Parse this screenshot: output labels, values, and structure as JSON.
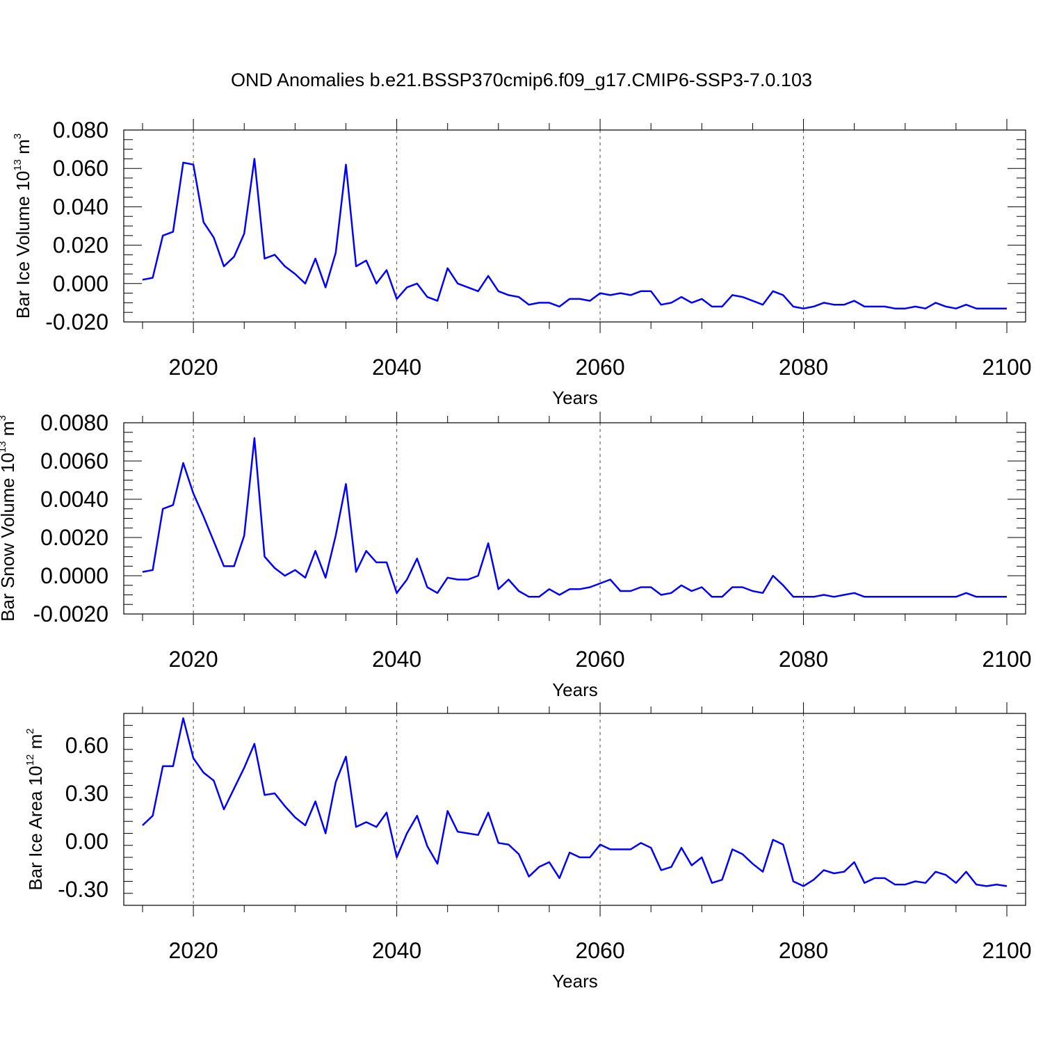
{
  "title": "OND Anomalies b.e21.BSSP370cmip6.f09_g17.CMIP6-SSP3-7.0.103",
  "colors": {
    "line": "#0000ff",
    "axes": "#000000",
    "background": "#ffffff"
  },
  "chart_data": [
    {
      "type": "line",
      "ylabel_main": "Bar Ice Volume 10",
      "ylabel_exp": "13",
      "ylabel_unit": " m",
      "ylabel_unit_exp": "3",
      "xlabel": "Years",
      "xlim": [
        2015,
        2100
      ],
      "ylim": [
        -0.02,
        0.08
      ],
      "xticks": [
        2020,
        2040,
        2060,
        2080,
        2100
      ],
      "xtick_labels": [
        "2020",
        "2040",
        "2060",
        "2080",
        "2100"
      ],
      "yticks": [
        -0.02,
        0.0,
        0.02,
        0.04,
        0.06,
        0.08
      ],
      "ytick_labels": [
        "-0.020",
        "0.000",
        "0.020",
        "0.040",
        "0.060",
        "0.080"
      ],
      "x_start": 2015,
      "values": [
        0.002,
        0.003,
        0.025,
        0.027,
        0.063,
        0.062,
        0.032,
        0.024,
        0.009,
        0.014,
        0.026,
        0.065,
        0.013,
        0.015,
        0.009,
        0.005,
        0.0,
        0.013,
        -0.002,
        0.016,
        0.062,
        0.009,
        0.012,
        0.0,
        0.007,
        -0.008,
        -0.002,
        0.0,
        -0.007,
        -0.009,
        0.008,
        0.0,
        -0.002,
        -0.004,
        0.004,
        -0.004,
        -0.006,
        -0.007,
        -0.011,
        -0.01,
        -0.01,
        -0.012,
        -0.008,
        -0.008,
        -0.009,
        -0.005,
        -0.006,
        -0.005,
        -0.006,
        -0.004,
        -0.004,
        -0.011,
        -0.01,
        -0.007,
        -0.01,
        -0.008,
        -0.012,
        -0.012,
        -0.006,
        -0.007,
        -0.009,
        -0.011,
        -0.004,
        -0.006,
        -0.012,
        -0.013,
        -0.012,
        -0.01,
        -0.011,
        -0.011,
        -0.009,
        -0.012,
        -0.012,
        -0.012,
        -0.013,
        -0.013,
        -0.012,
        -0.013,
        -0.01,
        -0.012,
        -0.013,
        -0.011,
        -0.013,
        -0.013,
        -0.013,
        -0.013
      ]
    },
    {
      "type": "line",
      "ylabel_main": "Bar Snow Volume 10",
      "ylabel_exp": "13",
      "ylabel_unit": " m",
      "ylabel_unit_exp": "3",
      "xlabel": "Years",
      "xlim": [
        2015,
        2100
      ],
      "ylim": [
        -0.002,
        0.008
      ],
      "xticks": [
        2020,
        2040,
        2060,
        2080,
        2100
      ],
      "xtick_labels": [
        "2020",
        "2040",
        "2060",
        "2080",
        "2100"
      ],
      "yticks": [
        -0.002,
        0.0,
        0.002,
        0.004,
        0.006,
        0.008
      ],
      "ytick_labels": [
        "-0.0020",
        "0.0000",
        "0.0020",
        "0.0040",
        "0.0060",
        "0.0080"
      ],
      "x_start": 2015,
      "values": [
        0.0002,
        0.0003,
        0.0035,
        0.0037,
        0.0059,
        0.0043,
        0.0031,
        0.0018,
        0.0005,
        0.0005,
        0.0021,
        0.0072,
        0.001,
        0.0004,
        0.0,
        0.0003,
        -0.0001,
        0.0013,
        -0.0001,
        0.0021,
        0.0048,
        0.0002,
        0.0013,
        0.0007,
        0.0007,
        -0.0009,
        -0.0002,
        0.0009,
        -0.0006,
        -0.0009,
        -0.0001,
        -0.0002,
        -0.0002,
        0.0,
        0.0017,
        -0.0007,
        -0.0002,
        -0.0008,
        -0.0011,
        -0.0011,
        -0.0007,
        -0.001,
        -0.0007,
        -0.0007,
        -0.0006,
        -0.0004,
        -0.0002,
        -0.0008,
        -0.0008,
        -0.0006,
        -0.0006,
        -0.001,
        -0.0009,
        -0.0005,
        -0.0008,
        -0.0006,
        -0.0011,
        -0.0011,
        -0.0006,
        -0.0006,
        -0.0008,
        -0.0009,
        0.0,
        -0.0005,
        -0.0011,
        -0.0011,
        -0.0011,
        -0.001,
        -0.0011,
        -0.001,
        -0.0009,
        -0.0011,
        -0.0011,
        -0.0011,
        -0.0011,
        -0.0011,
        -0.0011,
        -0.0011,
        -0.0011,
        -0.0011,
        -0.0011,
        -0.0009,
        -0.0011,
        -0.0011,
        -0.0011,
        -0.0011
      ]
    },
    {
      "type": "line",
      "ylabel_main": "Bar Ice Area 10",
      "ylabel_exp": "12",
      "ylabel_unit": " m",
      "ylabel_unit_exp": "2",
      "xlabel": "Years",
      "xlim": [
        2015,
        2100
      ],
      "ylim": [
        -0.4,
        0.8
      ],
      "xticks": [
        2020,
        2040,
        2060,
        2080,
        2100
      ],
      "xtick_labels": [
        "2020",
        "2040",
        "2060",
        "2080",
        "2100"
      ],
      "yticks": [
        -0.3,
        0.0,
        0.3,
        0.6
      ],
      "ytick_labels": [
        "-0.30",
        "0.00",
        "0.30",
        "0.60"
      ],
      "x_start": 2015,
      "values": [
        0.1,
        0.16,
        0.47,
        0.47,
        0.77,
        0.52,
        0.43,
        0.38,
        0.2,
        0.33,
        0.46,
        0.61,
        0.29,
        0.3,
        0.22,
        0.15,
        0.1,
        0.25,
        0.05,
        0.37,
        0.53,
        0.09,
        0.12,
        0.09,
        0.18,
        -0.1,
        0.05,
        0.16,
        -0.03,
        -0.14,
        0.19,
        0.06,
        0.05,
        0.04,
        0.18,
        -0.01,
        -0.02,
        -0.08,
        -0.22,
        -0.16,
        -0.13,
        -0.23,
        -0.07,
        -0.1,
        -0.1,
        -0.02,
        -0.05,
        -0.05,
        -0.05,
        -0.01,
        -0.04,
        -0.18,
        -0.16,
        -0.04,
        -0.15,
        -0.1,
        -0.26,
        -0.24,
        -0.05,
        -0.08,
        -0.14,
        -0.19,
        0.01,
        -0.02,
        -0.25,
        -0.28,
        -0.24,
        -0.18,
        -0.2,
        -0.19,
        -0.13,
        -0.26,
        -0.23,
        -0.23,
        -0.27,
        -0.27,
        -0.25,
        -0.26,
        -0.19,
        -0.21,
        -0.26,
        -0.19,
        -0.27,
        -0.28,
        -0.27,
        -0.28
      ]
    }
  ]
}
